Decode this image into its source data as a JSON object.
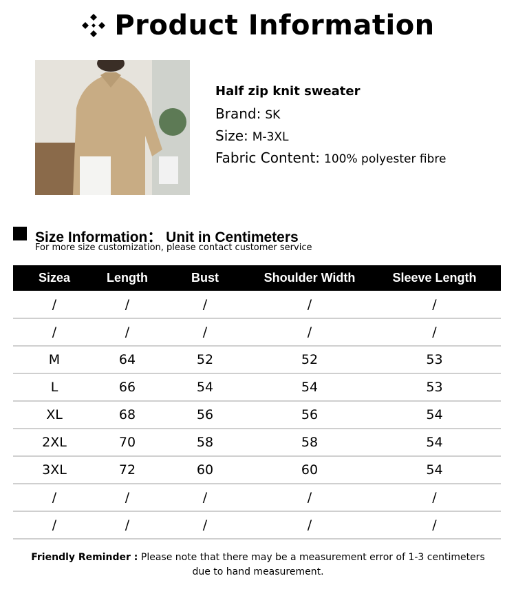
{
  "title": "Product Information",
  "title_icon": "four-diamond-icon",
  "product": {
    "name": "Half zip knit sweater",
    "brand_label": "Brand:",
    "brand": "SK",
    "size_label": "Size:",
    "size": "M-3XL",
    "fabric_label": "Fabric Content:",
    "fabric": "100% polyester fibre"
  },
  "size_section": {
    "heading": "Size Information： Unit in Centimeters",
    "subtitle": "For more size customization, please contact customer service"
  },
  "table": {
    "headers": [
      "Sizea",
      "Length",
      "Bust",
      "Shoulder Width",
      "Sleeve Length"
    ],
    "rows": [
      [
        "/",
        "/",
        "/",
        "/",
        "/"
      ],
      [
        "/",
        "/",
        "/",
        "/",
        "/"
      ],
      [
        "M",
        "64",
        "52",
        "52",
        "53"
      ],
      [
        "L",
        "66",
        "54",
        "54",
        "53"
      ],
      [
        "XL",
        "68",
        "56",
        "56",
        "54"
      ],
      [
        "2XL",
        "70",
        "58",
        "58",
        "54"
      ],
      [
        "3XL",
        "72",
        "60",
        "60",
        "54"
      ],
      [
        "/",
        "/",
        "/",
        "/",
        "/"
      ],
      [
        "/",
        "/",
        "/",
        "/",
        "/"
      ]
    ]
  },
  "note": {
    "label": "Friendly Reminder :",
    "text": " Please note that there may be a measurement error of 1-3 centimeters",
    "text2": "due to hand measurement."
  }
}
